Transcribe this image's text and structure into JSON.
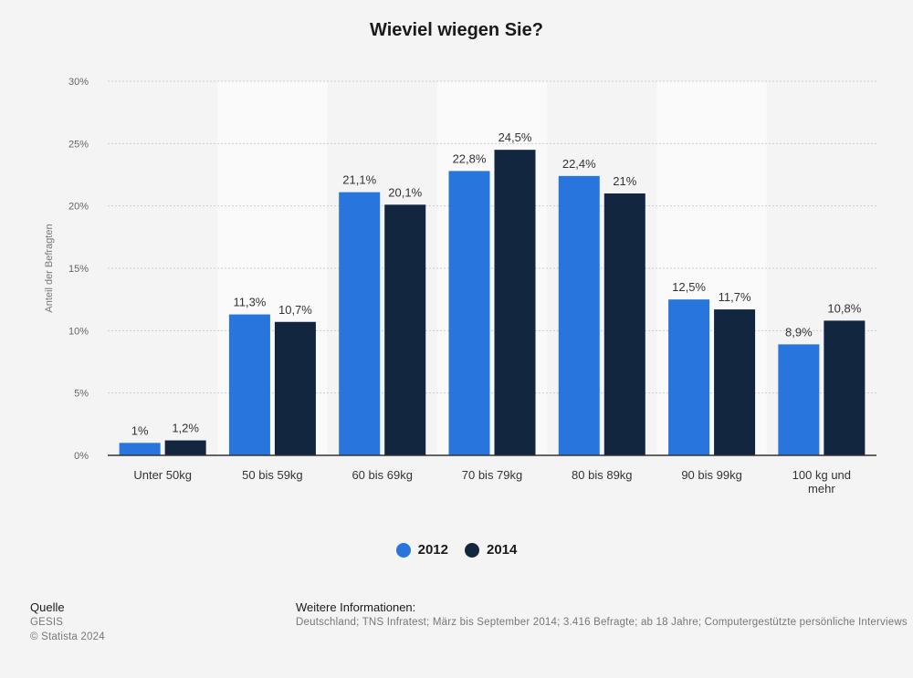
{
  "title": "Wieviel wiegen Sie?",
  "colors": {
    "series_2012": "#2876dd",
    "series_2014": "#12263f",
    "band": "#fafafa",
    "grid": "#cccccc"
  },
  "chart_data": {
    "type": "bar",
    "title": "Wieviel wiegen Sie?",
    "ylabel": "Anteil der Befragten",
    "xlabel": "",
    "ylim": [
      0,
      30
    ],
    "yticks": [
      "0%",
      "5%",
      "10%",
      "15%",
      "20%",
      "25%",
      "30%"
    ],
    "ytick_values": [
      0,
      5,
      10,
      15,
      20,
      25,
      30
    ],
    "categories": [
      "Unter 50kg",
      "50 bis 59kg",
      "60 bis 69kg",
      "70 bis 79kg",
      "80 bis 89kg",
      "90 bis 99kg",
      "100 kg und mehr"
    ],
    "series": [
      {
        "name": "2012",
        "values": [
          1,
          11.3,
          21.1,
          22.8,
          22.4,
          12.5,
          8.9
        ],
        "labels": [
          "1%",
          "11,3%",
          "21,1%",
          "22,8%",
          "22,4%",
          "12,5%",
          "8,9%"
        ]
      },
      {
        "name": "2014",
        "values": [
          1.2,
          10.7,
          20.1,
          24.5,
          21,
          11.7,
          10.8
        ],
        "labels": [
          "1,2%",
          "10,7%",
          "20,1%",
          "24,5%",
          "21%",
          "11,7%",
          "10,8%"
        ]
      }
    ],
    "grid": true,
    "legend_position": "bottom-center"
  },
  "legend": {
    "item_1": "2012",
    "item_2": "2014"
  },
  "footer": {
    "source_heading": "Quelle",
    "source_name": "GESIS",
    "copyright": "© Statista 2024",
    "info_heading": "Weitere Informationen:",
    "info_text": "Deutschland; TNS Infratest; März bis September 2014; 3.416 Befragte; ab 18 Jahre; Computergestützte persönliche Interviews"
  }
}
